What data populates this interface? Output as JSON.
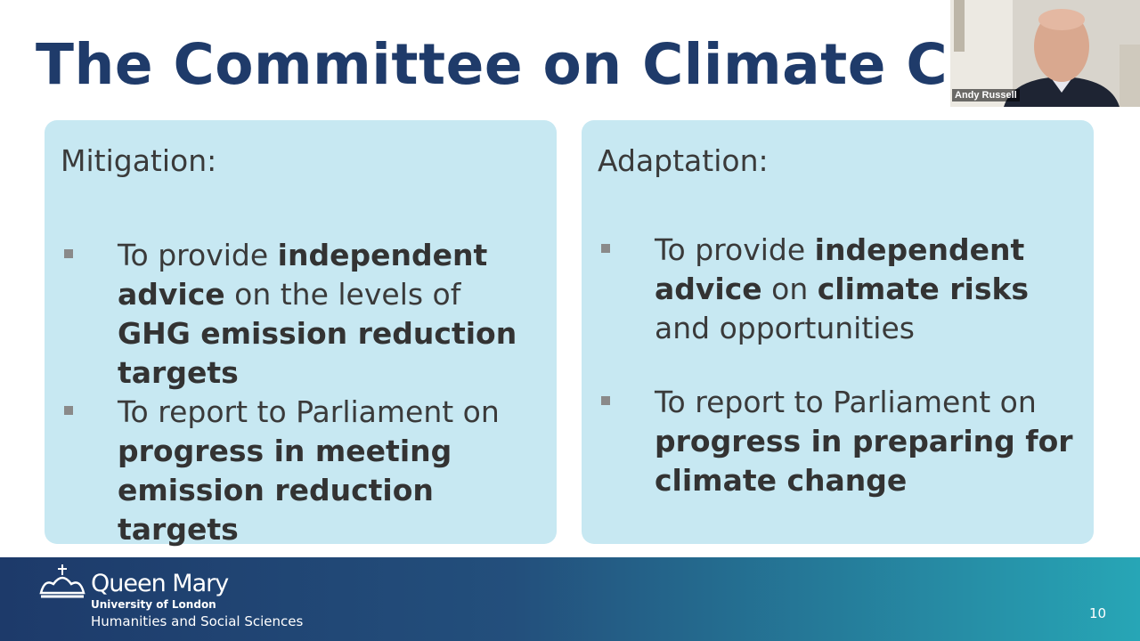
{
  "slide": {
    "title": "The Committee on Climate Change",
    "panels": [
      {
        "heading": "Mitigation:",
        "bullets": [
          [
            {
              "text": "To provide ",
              "bold": false
            },
            {
              "text": "independent advice",
              "bold": true
            },
            {
              "text": " on the levels of ",
              "bold": false
            },
            {
              "text": "GHG emission reduction targets",
              "bold": true
            }
          ],
          [
            {
              "text": "To report to Parliament on ",
              "bold": false
            },
            {
              "text": "progress in meeting emission reduction targets",
              "bold": true
            }
          ]
        ]
      },
      {
        "heading": "Adaptation:",
        "bullets": [
          [
            {
              "text": "To provide ",
              "bold": false
            },
            {
              "text": "independent advice",
              "bold": true
            },
            {
              "text": " on ",
              "bold": false
            },
            {
              "text": "climate risks",
              "bold": true
            },
            {
              "text": " and opportunities",
              "bold": false
            }
          ],
          [
            {
              "text": "To report to Parliament on ",
              "bold": false
            },
            {
              "text": "progress in preparing for climate change",
              "bold": true
            }
          ]
        ]
      }
    ],
    "page_number": "10"
  },
  "footer": {
    "logo_name": "Queen Mary",
    "logo_sub": "University of London",
    "faculty": "Humanities and Social Sciences"
  },
  "video": {
    "participant": "Andy Russell"
  }
}
